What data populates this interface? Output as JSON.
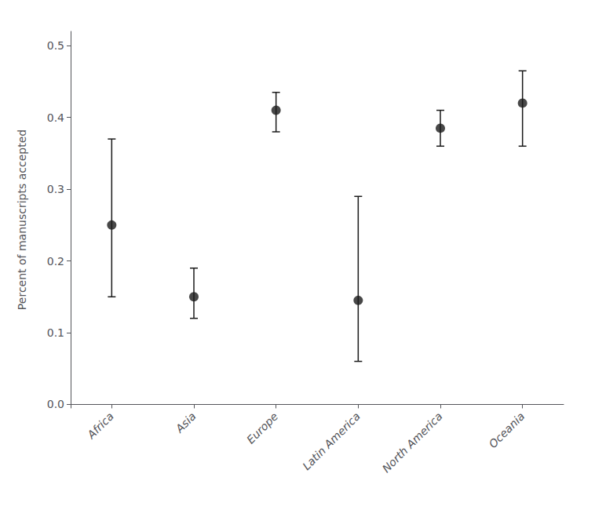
{
  "chart_data": {
    "type": "scatter",
    "categories": [
      "Africa",
      "Asia",
      "Europe",
      "Latin America",
      "North America",
      "Oceania"
    ],
    "values": [
      0.25,
      0.15,
      0.41,
      0.145,
      0.385,
      0.42
    ],
    "err_lower": [
      0.1,
      0.03,
      0.03,
      0.085,
      0.025,
      0.06
    ],
    "err_upper": [
      0.12,
      0.04,
      0.025,
      0.145,
      0.025,
      0.045
    ],
    "ylabel": "Percent of manuscripts accepted",
    "ylim": [
      -0.005,
      0.52
    ],
    "yticks": [
      {
        "value": 0.0,
        "label": "0.0"
      },
      0.1,
      0.2,
      0.3,
      0.4,
      0.5
    ],
    "color": "#1a1a1a",
    "marker": "circle",
    "grid": false
  }
}
